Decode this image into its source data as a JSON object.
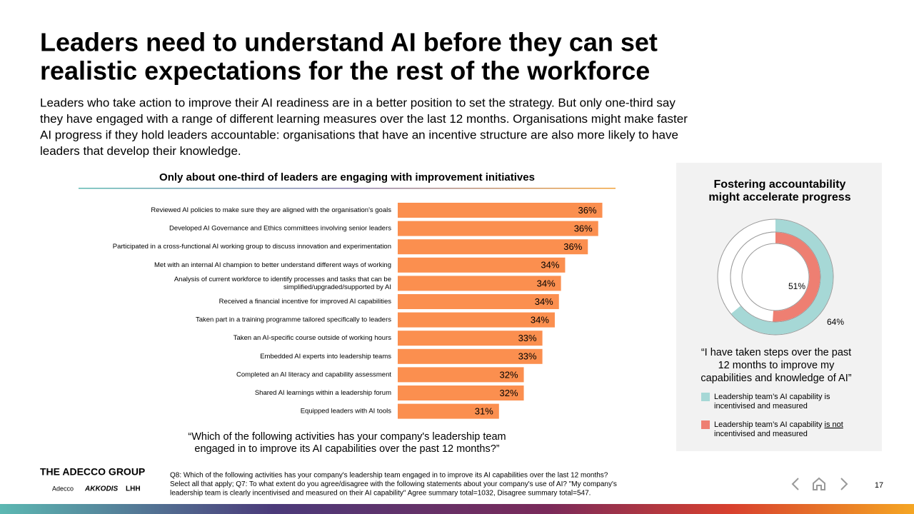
{
  "title": [
    "Leaders need to understand AI before they can set",
    "realistic expectations for the rest of the workforce"
  ],
  "subtitle": [
    "Leaders who take action to improve their AI readiness are in a better position to set the strategy. But only one-third say",
    "they have engaged with a range of different learning measures over the last 12 months. Organisations might make faster",
    "AI progress if they hold leaders accountable: organisations that have an incentive structure are also more likely to have",
    "leaders that develop their knowledge."
  ],
  "chart_data": [
    {
      "type": "bar",
      "orientation": "horizontal",
      "title": "Only about one-third of leaders are engaging with improvement initiatives",
      "categories": [
        [
          "Reviewed AI policies to make sure they are aligned with the organisation's goals"
        ],
        [
          "Developed AI Governance and Ethics committees involving senior leaders"
        ],
        [
          "Participated in a cross-functional AI working group to discuss innovation and experimentation"
        ],
        [
          "Met with an internal AI champion to better understand different ways of working"
        ],
        [
          "Analysis of current workforce to identify processes and tasks that can be",
          "simplified/upgraded/supported by AI"
        ],
        [
          "Received a financial incentive for improved AI capabilities"
        ],
        [
          "Taken part in a training programme tailored specifically to leaders"
        ],
        [
          "Taken an AI-specific course outside of working hours"
        ],
        [
          "Embedded AI experts into leadership teams"
        ],
        [
          "Completed an AI literacy and capability assessment"
        ],
        [
          "Shared AI learnings within a leadership forum"
        ],
        [
          "Equipped leaders with AI tools"
        ]
      ],
      "values": [
        36.2,
        36.0,
        35.5,
        34.4,
        34.2,
        34.1,
        33.9,
        33.3,
        33.3,
        32.4,
        32.4,
        31.2
      ],
      "value_labels": [
        "36%",
        "36%",
        "36%",
        "34%",
        "34%",
        "34%",
        "34%",
        "33%",
        "33%",
        "32%",
        "32%",
        "31%"
      ],
      "color": "#fb8f4f",
      "xlim": [
        26.3,
        36.7
      ],
      "annotation": [
        "“Which of the following activities has your company's leadership team",
        "engaged in to improve its AI capabilities over the past 12 months?”"
      ]
    },
    {
      "type": "donut",
      "title": [
        "Fostering accountability",
        "might accelerate progress"
      ],
      "series": [
        {
          "name": [
            "Leadership team’s AI capability is",
            "incentivised and measured"
          ],
          "color": "#a6d8d6",
          "values": [
            64
          ],
          "value_labels": [
            "64%"
          ]
        },
        {
          "name": [
            "Leadership team’s AI capability ",
            "is not",
            "incentivised and measured"
          ],
          "color": "#ee7f72",
          "values": [
            51
          ],
          "value_labels": [
            "51%"
          ]
        }
      ],
      "ylim": [
        0,
        100
      ],
      "annotation": [
        "“I have taken steps over the past",
        "12 months to improve my",
        "capabilities and knowledge of AI”"
      ]
    }
  ],
  "footer": {
    "brand": "THE ADECCO GROUP",
    "logos": [
      "Adecco",
      "AKKODIS",
      "LHH"
    ],
    "note": [
      "Q8: Which of the following activities has your company's leadership team engaged in to improve its AI capabilities over the last 12 months?",
      "Select all that apply; Q7: To what extent do you agree/disagree with the following statements about your company's use of AI? \"My company's",
      "leadership team is clearly incentivised and measured on their AI capability\" Agree summary total=1032, Disagree summary total=547."
    ],
    "page": "17"
  }
}
